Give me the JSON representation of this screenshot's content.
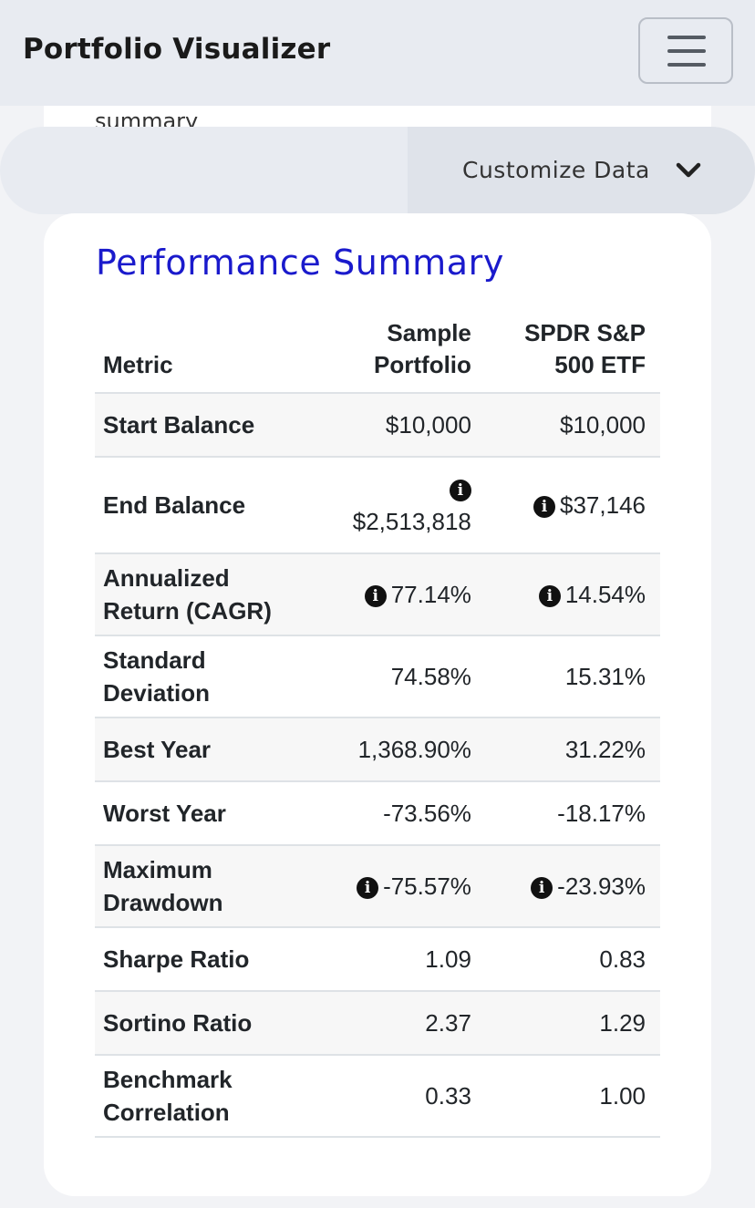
{
  "navbar": {
    "brand": "Portfolio Visualizer",
    "menu_icon": "hamburger-menu-icon"
  },
  "peek": {
    "text": "summary"
  },
  "customize": {
    "label": "Customize Data",
    "icon": "chevron-down-icon"
  },
  "summary": {
    "title": "Performance Summary",
    "columns": [
      "Metric",
      "Sample Portfolio",
      "SPDR S&P 500 ETF"
    ],
    "rows": [
      {
        "label": "Start Balance",
        "portfolio": "$10,000",
        "benchmark": "$10,000",
        "info": false
      },
      {
        "label": "End Balance",
        "portfolio": "$2,513,818",
        "benchmark": "$37,146",
        "info": true
      },
      {
        "label": "Annualized Return (CAGR)",
        "portfolio": "77.14%",
        "benchmark": "14.54%",
        "info": true
      },
      {
        "label": "Standard Deviation",
        "portfolio": "74.58%",
        "benchmark": "15.31%",
        "info": false
      },
      {
        "label": "Best Year",
        "portfolio": "1,368.90%",
        "benchmark": "31.22%",
        "info": false
      },
      {
        "label": "Worst Year",
        "portfolio": "-73.56%",
        "benchmark": "-18.17%",
        "info": false
      },
      {
        "label": "Maximum Drawdown",
        "portfolio": "-75.57%",
        "benchmark": "-23.93%",
        "info": true
      },
      {
        "label": "Sharpe Ratio",
        "portfolio": "1.09",
        "benchmark": "0.83",
        "info": false
      },
      {
        "label": "Sortino Ratio",
        "portfolio": "2.37",
        "benchmark": "1.29",
        "info": false
      },
      {
        "label": "Benchmark Correlation",
        "portfolio": "0.33",
        "benchmark": "1.00",
        "info": false
      }
    ]
  },
  "colors": {
    "title": "#1a1acc",
    "navbar_bg": "#e8ebf1",
    "stripe": "#f7f7f7"
  }
}
